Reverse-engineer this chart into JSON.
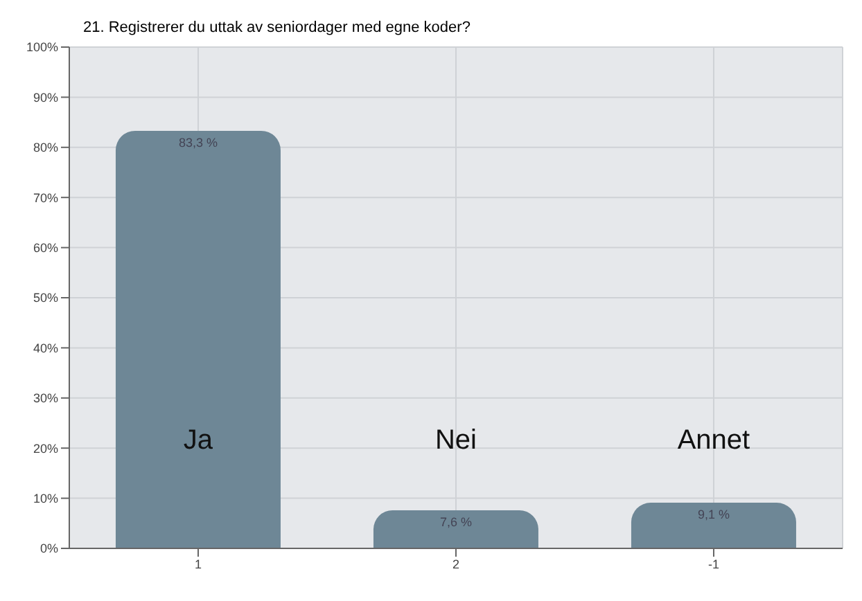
{
  "chart_data": {
    "type": "bar",
    "title": "21. Registrerer du uttak av seniordager med egne koder?",
    "categories": [
      "1",
      "2",
      "-1"
    ],
    "values": [
      83.3,
      7.6,
      9.1
    ],
    "value_labels": [
      "83,3 %",
      "7,6 %",
      "9,1 %"
    ],
    "color": "#6e8796",
    "ylim": [
      0,
      100
    ],
    "yticks": [
      {
        "value": 0,
        "label": "0%"
      },
      {
        "value": 10,
        "label": "10%"
      },
      {
        "value": 20,
        "label": "20%"
      },
      {
        "value": 30,
        "label": "30%"
      },
      {
        "value": 40,
        "label": "40%"
      },
      {
        "value": 50,
        "label": "50%"
      },
      {
        "value": 60,
        "label": "60%"
      },
      {
        "value": 70,
        "label": "70%"
      },
      {
        "value": 80,
        "label": "80%"
      },
      {
        "value": 90,
        "label": "90%"
      },
      {
        "value": 100,
        "label": "100%"
      }
    ],
    "grid": true,
    "annotations": [
      "Ja",
      "Nei",
      "Annet"
    ]
  }
}
